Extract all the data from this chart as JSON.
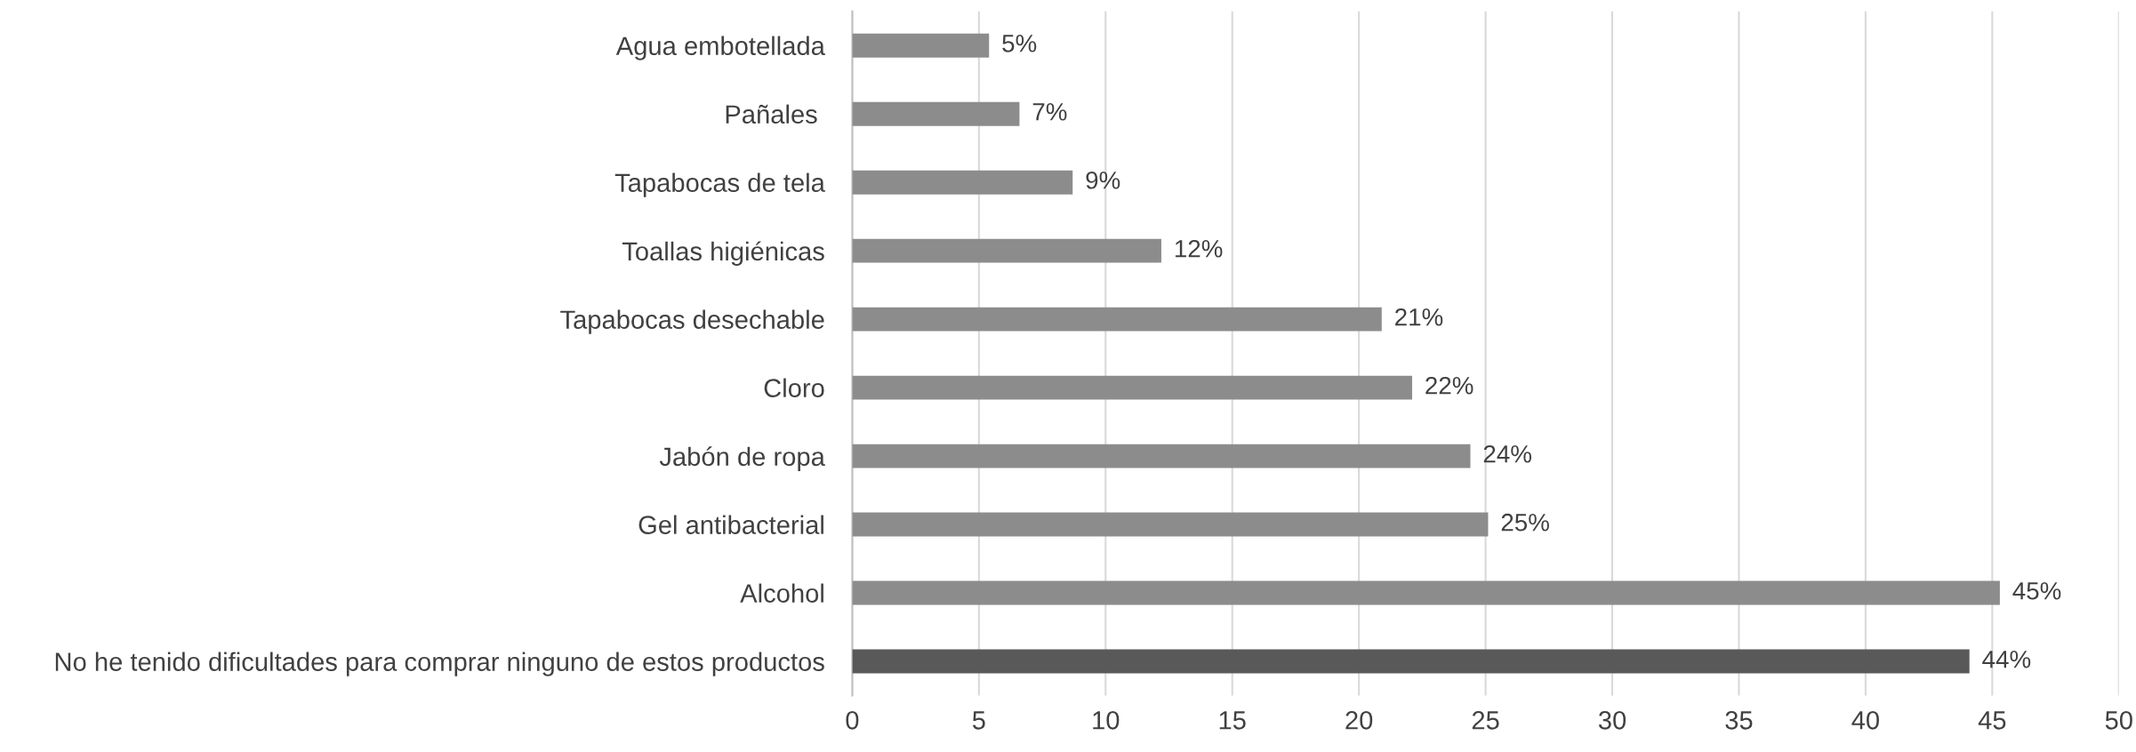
{
  "chart_data": {
    "type": "bar",
    "orientation": "horizontal",
    "categories": [
      "Agua embotellada",
      "Pañales ",
      "Tapabocas de tela",
      "Toallas higiénicas",
      "Tapabocas desechable",
      "Cloro",
      "Jabón de ropa",
      "Gel antibacterial",
      "Alcohol",
      "No he tenido dificultades para comprar ninguno de estos productos"
    ],
    "values": [
      5.4,
      6.6,
      8.7,
      12.2,
      20.9,
      22.1,
      24.4,
      25.1,
      45.3,
      44.1
    ],
    "colors": [
      "#8c8c8c",
      "#8c8c8c",
      "#8c8c8c",
      "#8c8c8c",
      "#8c8c8c",
      "#8c8c8c",
      "#8c8c8c",
      "#8c8c8c",
      "#8c8c8c",
      "#595959"
    ],
    "value_labels": [
      "5%",
      "7%",
      "9%",
      "12%",
      "21%",
      "22%",
      "24%",
      "25%",
      "45%",
      "44%"
    ],
    "xlim": [
      0,
      50
    ],
    "xticks": [
      0,
      5,
      10,
      15,
      20,
      25,
      30,
      35,
      40,
      45,
      50
    ],
    "grid": "x",
    "legend": false
  }
}
